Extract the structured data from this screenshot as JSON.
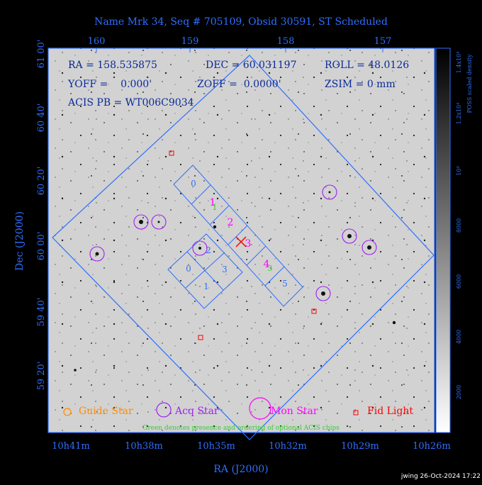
{
  "title": "Name Mrk 34, Seq # 705109, Obsid 30591, ST Scheduled",
  "axes": {
    "xlabel": "RA (J2000)",
    "ylabel": "Dec (J2000)",
    "ra_ticks": [
      "10h41m",
      "10h38m",
      "10h35m",
      "10h32m",
      "10h29m",
      "10h26m"
    ],
    "top_ticks": [
      "160",
      "159",
      "158",
      "157"
    ],
    "dec_ticks": [
      "61 00'",
      "60 40'",
      "60 20'",
      "60 00'",
      "59 40'",
      "59 20'"
    ]
  },
  "info": {
    "ra": "RA = 158.535875",
    "dec": "DEC = 60.031197",
    "roll": "ROLL = 48.0126",
    "yoff": "YOFF =    0.000'",
    "zoff": "ZOFF =  0.0000'",
    "zsim": "ZSIM = 0 mm",
    "acis": "ACIS PB = WT006C9034"
  },
  "chips": {
    "i_array": [
      "0",
      "1",
      "2",
      "3",
      "4",
      "5"
    ],
    "s_array": [
      "0",
      "2",
      "3",
      "1"
    ],
    "optional_order": [
      "1",
      "3"
    ]
  },
  "legend": {
    "guide": "Guide Star",
    "acq": "Acq Star",
    "mon": "Mon Star",
    "fid": "Fid Light",
    "note": "Green denotes presence and ordering of optional ACIS chips"
  },
  "colorbar": {
    "label": "POSS scaled density",
    "ticks": [
      "1.4x10⁴",
      "1.2x10⁴",
      "10⁴",
      "8000",
      "6000",
      "4000",
      "2000"
    ]
  },
  "footer": "jwing 26-Oct-2024 17:22",
  "colors": {
    "blue": "#2f6fff",
    "acq": "#a020f0",
    "mon": "#ff00ff",
    "fid": "#ff0000",
    "guide": "#ff8c00",
    "optional": "#32cd32"
  }
}
